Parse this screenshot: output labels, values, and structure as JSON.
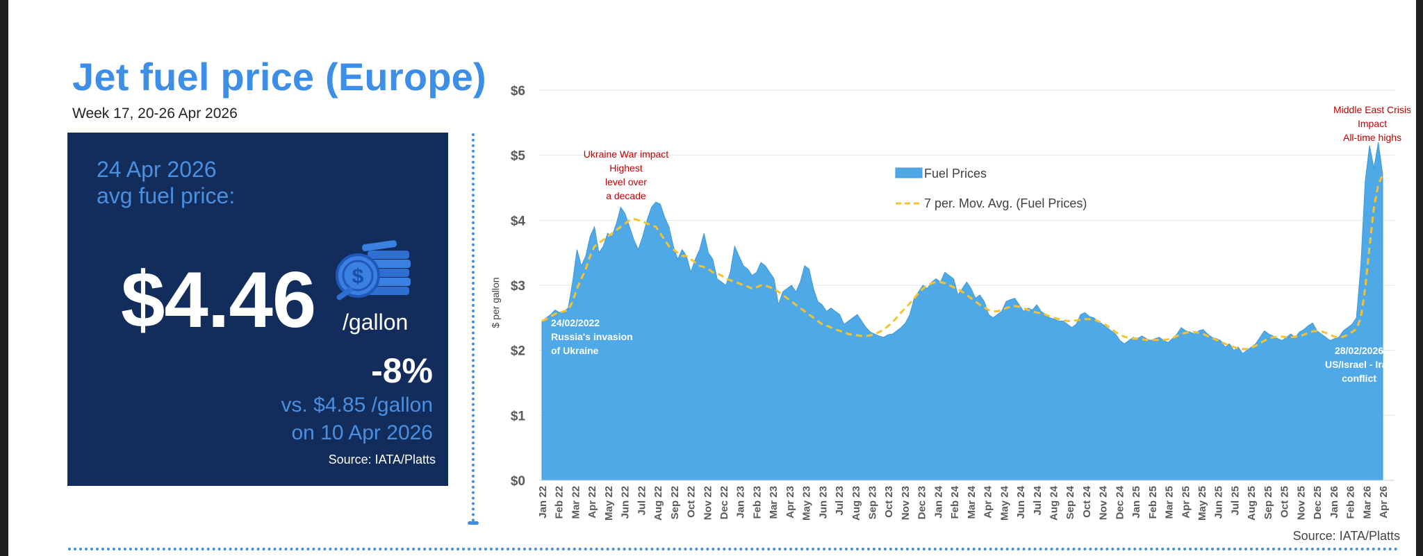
{
  "header": {
    "title": "Jet fuel price (Europe)",
    "subtitle": "Week 17, 20-26 Apr 2026"
  },
  "card": {
    "date_line": "24 Apr 2026",
    "label_line": "avg fuel price:",
    "price": "$4.46",
    "unit": "/gallon",
    "change": "-8%",
    "compare_line1": "vs. $4.85 /gallon",
    "compare_line2": "on 10 Apr 2026",
    "source": "Source: IATA/Platts",
    "icon": "coins-dollar-icon"
  },
  "colors": {
    "title": "#3d8ee6",
    "card_bg": "#122c5c",
    "card_accent": "#4b8fe0",
    "area_fill": "#4fa9e6",
    "moving_avg": "#f5c232",
    "annotation_red": "#c00000"
  },
  "chart_data": {
    "type": "area",
    "ylabel": "$ per gallon",
    "ylim": [
      0,
      6
    ],
    "yticks": [
      "$0",
      "$1",
      "$2",
      "$3",
      "$4",
      "$5",
      "$6"
    ],
    "x_tick_labels": [
      "Jan 22",
      "Feb 22",
      "Mar 22",
      "Apr 22",
      "May 22",
      "Jun 22",
      "Jul 22",
      "Aug 22",
      "Sep 22",
      "Oct 22",
      "Nov 22",
      "Dec 22",
      "Jan 23",
      "Feb 23",
      "Mar 23",
      "Apr 23",
      "May 23",
      "Jun 23",
      "Jul 23",
      "Aug 23",
      "Sep 23",
      "Oct 23",
      "Nov 23",
      "Dec 23",
      "Jan 24",
      "Feb 24",
      "Mar 24",
      "Apr 24",
      "May 24",
      "Jun 24",
      "Jul 24",
      "Aug 24",
      "Sep 24",
      "Oct 24",
      "Nov 24",
      "Dec 24",
      "Jan 25",
      "Feb 25",
      "Mar 25",
      "Apr 25",
      "May 25",
      "Jun 25",
      "Jul 25",
      "Aug 25",
      "Sep 25",
      "Oct 25",
      "Nov 25",
      "Dec 25",
      "Jan 26",
      "Feb 26",
      "Mar 26",
      "Apr 26"
    ],
    "grid": true,
    "legend_position": "top-center",
    "series": [
      {
        "name": "Fuel Prices",
        "style": "area",
        "values": [
          2.45,
          2.5,
          2.55,
          2.62,
          2.58,
          2.6,
          2.65,
          3.05,
          3.55,
          3.3,
          3.45,
          3.75,
          3.9,
          3.5,
          3.6,
          3.8,
          3.75,
          3.95,
          4.2,
          4.1,
          3.9,
          3.7,
          3.55,
          3.75,
          4.0,
          4.2,
          4.28,
          4.25,
          4.05,
          3.9,
          3.6,
          3.4,
          3.55,
          3.45,
          3.2,
          3.4,
          3.55,
          3.8,
          3.5,
          3.4,
          3.1,
          3.05,
          3.0,
          3.2,
          3.6,
          3.45,
          3.3,
          3.25,
          3.15,
          3.2,
          3.35,
          3.3,
          3.2,
          3.1,
          2.7,
          2.9,
          2.95,
          3.0,
          2.9,
          3.05,
          3.3,
          3.25,
          2.95,
          2.75,
          2.7,
          2.6,
          2.65,
          2.6,
          2.55,
          2.4,
          2.45,
          2.5,
          2.55,
          2.45,
          2.35,
          2.28,
          2.25,
          2.22,
          2.2,
          2.24,
          2.25,
          2.3,
          2.35,
          2.42,
          2.55,
          2.8,
          2.9,
          3.0,
          2.95,
          3.05,
          3.1,
          3.05,
          3.2,
          3.15,
          3.1,
          2.85,
          2.95,
          3.05,
          2.95,
          2.8,
          2.85,
          2.75,
          2.55,
          2.5,
          2.55,
          2.6,
          2.75,
          2.78,
          2.8,
          2.7,
          2.6,
          2.65,
          2.62,
          2.7,
          2.6,
          2.55,
          2.5,
          2.48,
          2.45,
          2.45,
          2.4,
          2.35,
          2.4,
          2.55,
          2.58,
          2.52,
          2.5,
          2.45,
          2.4,
          2.35,
          2.3,
          2.25,
          2.15,
          2.1,
          2.15,
          2.2,
          2.18,
          2.22,
          2.18,
          2.15,
          2.18,
          2.2,
          2.15,
          2.12,
          2.18,
          2.25,
          2.35,
          2.3,
          2.28,
          2.25,
          2.3,
          2.32,
          2.25,
          2.2,
          2.18,
          2.15,
          2.05,
          2.1,
          2.0,
          2.05,
          1.95,
          2.0,
          2.05,
          2.1,
          2.2,
          2.3,
          2.25,
          2.22,
          2.18,
          2.15,
          2.2,
          2.25,
          2.2,
          2.28,
          2.32,
          2.38,
          2.42,
          2.3,
          2.25,
          2.2,
          2.15,
          2.18,
          2.2,
          2.3,
          2.35,
          2.4,
          2.5,
          3.3,
          4.6,
          5.15,
          4.8,
          5.2,
          4.7
        ]
      },
      {
        "name": "7 per. Mov. Avg. (Fuel Prices)",
        "style": "dashed-line",
        "values": [
          2.45,
          2.48,
          2.52,
          2.56,
          2.58,
          2.6,
          2.62,
          2.75,
          2.95,
          3.1,
          3.25,
          3.45,
          3.6,
          3.65,
          3.7,
          3.75,
          3.8,
          3.85,
          3.9,
          3.95,
          4.0,
          4.02,
          4.0,
          3.98,
          3.95,
          3.92,
          3.9,
          3.8,
          3.7,
          3.6,
          3.55,
          3.5,
          3.45,
          3.45,
          3.4,
          3.35,
          3.3,
          3.28,
          3.25,
          3.2,
          3.18,
          3.15,
          3.1,
          3.08,
          3.05,
          3.03,
          3.0,
          2.98,
          2.95,
          2.97,
          3.0,
          3.0,
          2.97,
          2.95,
          2.9,
          2.85,
          2.8,
          2.75,
          2.7,
          2.65,
          2.6,
          2.55,
          2.5,
          2.45,
          2.4,
          2.38,
          2.35,
          2.32,
          2.3,
          2.28,
          2.25,
          2.24,
          2.23,
          2.22,
          2.22,
          2.23,
          2.25,
          2.28,
          2.32,
          2.37,
          2.43,
          2.5,
          2.58,
          2.65,
          2.72,
          2.8,
          2.88,
          2.95,
          3.0,
          3.03,
          3.05,
          3.05,
          3.03,
          3.0,
          2.97,
          2.94,
          2.9,
          2.85,
          2.8,
          2.75,
          2.7,
          2.66,
          2.62,
          2.6,
          2.6,
          2.62,
          2.65,
          2.67,
          2.68,
          2.67,
          2.65,
          2.62,
          2.6,
          2.58,
          2.57,
          2.55,
          2.52,
          2.5,
          2.48,
          2.46,
          2.45,
          2.45,
          2.46,
          2.47,
          2.48,
          2.48,
          2.47,
          2.45,
          2.42,
          2.38,
          2.33,
          2.28,
          2.24,
          2.21,
          2.19,
          2.18,
          2.18,
          2.17,
          2.16,
          2.16,
          2.16,
          2.16,
          2.16,
          2.17,
          2.19,
          2.22,
          2.25,
          2.27,
          2.28,
          2.28,
          2.27,
          2.25,
          2.22,
          2.19,
          2.16,
          2.13,
          2.1,
          2.07,
          2.05,
          2.03,
          2.02,
          2.02,
          2.04,
          2.07,
          2.11,
          2.15,
          2.18,
          2.2,
          2.21,
          2.21,
          2.2,
          2.2,
          2.21,
          2.22,
          2.24,
          2.27,
          2.29,
          2.3,
          2.29,
          2.27,
          2.24,
          2.21,
          2.2,
          2.21,
          2.24,
          2.28,
          2.33,
          2.5,
          2.95,
          3.6,
          4.2,
          4.55,
          4.7
        ]
      }
    ],
    "annotations": [
      {
        "lines": [
          "Ukraine War impact",
          "Highest",
          "level over",
          "a decade"
        ],
        "color": "red"
      },
      {
        "lines": [
          "24/02/2022",
          "Russia's invasion",
          "of Ukraine"
        ],
        "color": "white"
      },
      {
        "lines": [
          "Middle East Crisis",
          "Impact",
          "All-time highs"
        ],
        "color": "red"
      },
      {
        "lines": [
          "28/02/2026",
          "US/Israel - Iran",
          "conflict"
        ],
        "color": "white"
      }
    ],
    "source": "Source: IATA/Platts"
  }
}
